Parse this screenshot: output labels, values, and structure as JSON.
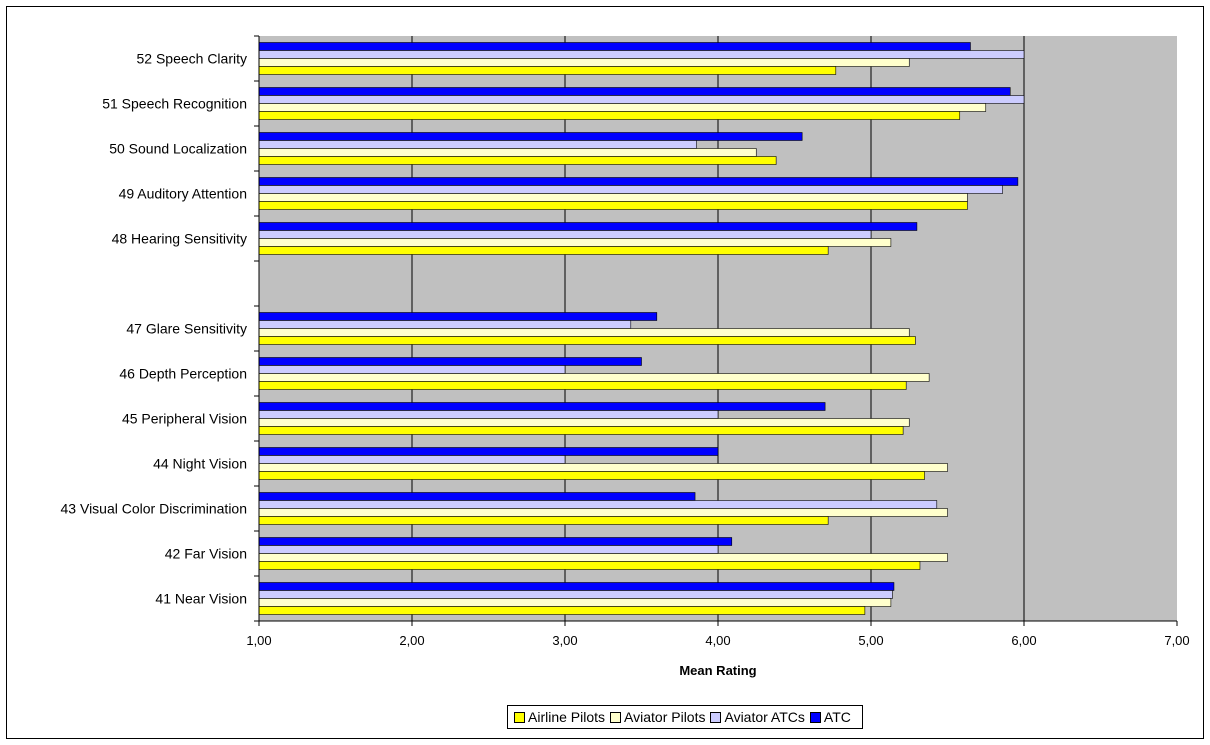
{
  "chart_data": {
    "type": "bar",
    "orientation": "horizontal",
    "xlabel": "Mean Rating",
    "xlim": [
      1,
      7
    ],
    "xticks": [
      "1,00",
      "2,00",
      "3,00",
      "4,00",
      "5,00",
      "6,00",
      "7,00"
    ],
    "grid": true,
    "legend_position": "bottom",
    "categories": [
      "52 Speech Clarity",
      "51 Speech Recognition",
      "50 Sound Localization",
      "49 Auditory Attention",
      "48 Hearing Sensitivity",
      "",
      "47 Glare Sensitivity",
      "46 Depth Perception",
      "45 Peripheral Vision",
      "44 Night Vision",
      "43 Visual Color Discrimination",
      "42 Far Vision",
      "41 Near Vision"
    ],
    "series": [
      {
        "name": "Airline Pilots",
        "color": "#ffff00",
        "values": [
          4.77,
          5.58,
          4.38,
          5.63,
          4.72,
          null,
          5.29,
          5.23,
          5.21,
          5.35,
          4.72,
          5.32,
          4.96
        ]
      },
      {
        "name": "Aviator Pilots",
        "color": "#ffffcc",
        "values": [
          5.25,
          5.75,
          4.25,
          5.63,
          5.13,
          null,
          5.25,
          5.38,
          5.25,
          5.5,
          5.5,
          5.5,
          5.13
        ]
      },
      {
        "name": "Aviator ATCs",
        "color": "#ccccff",
        "values": [
          6.0,
          6.0,
          3.86,
          5.86,
          5.0,
          null,
          3.43,
          3.0,
          4.0,
          3.0,
          5.43,
          4.0,
          5.14
        ]
      },
      {
        "name": "ATC",
        "color": "#0000ff",
        "values": [
          5.65,
          5.91,
          4.55,
          5.96,
          5.3,
          null,
          3.6,
          3.5,
          4.7,
          4.0,
          3.85,
          4.09,
          5.15
        ]
      }
    ]
  }
}
